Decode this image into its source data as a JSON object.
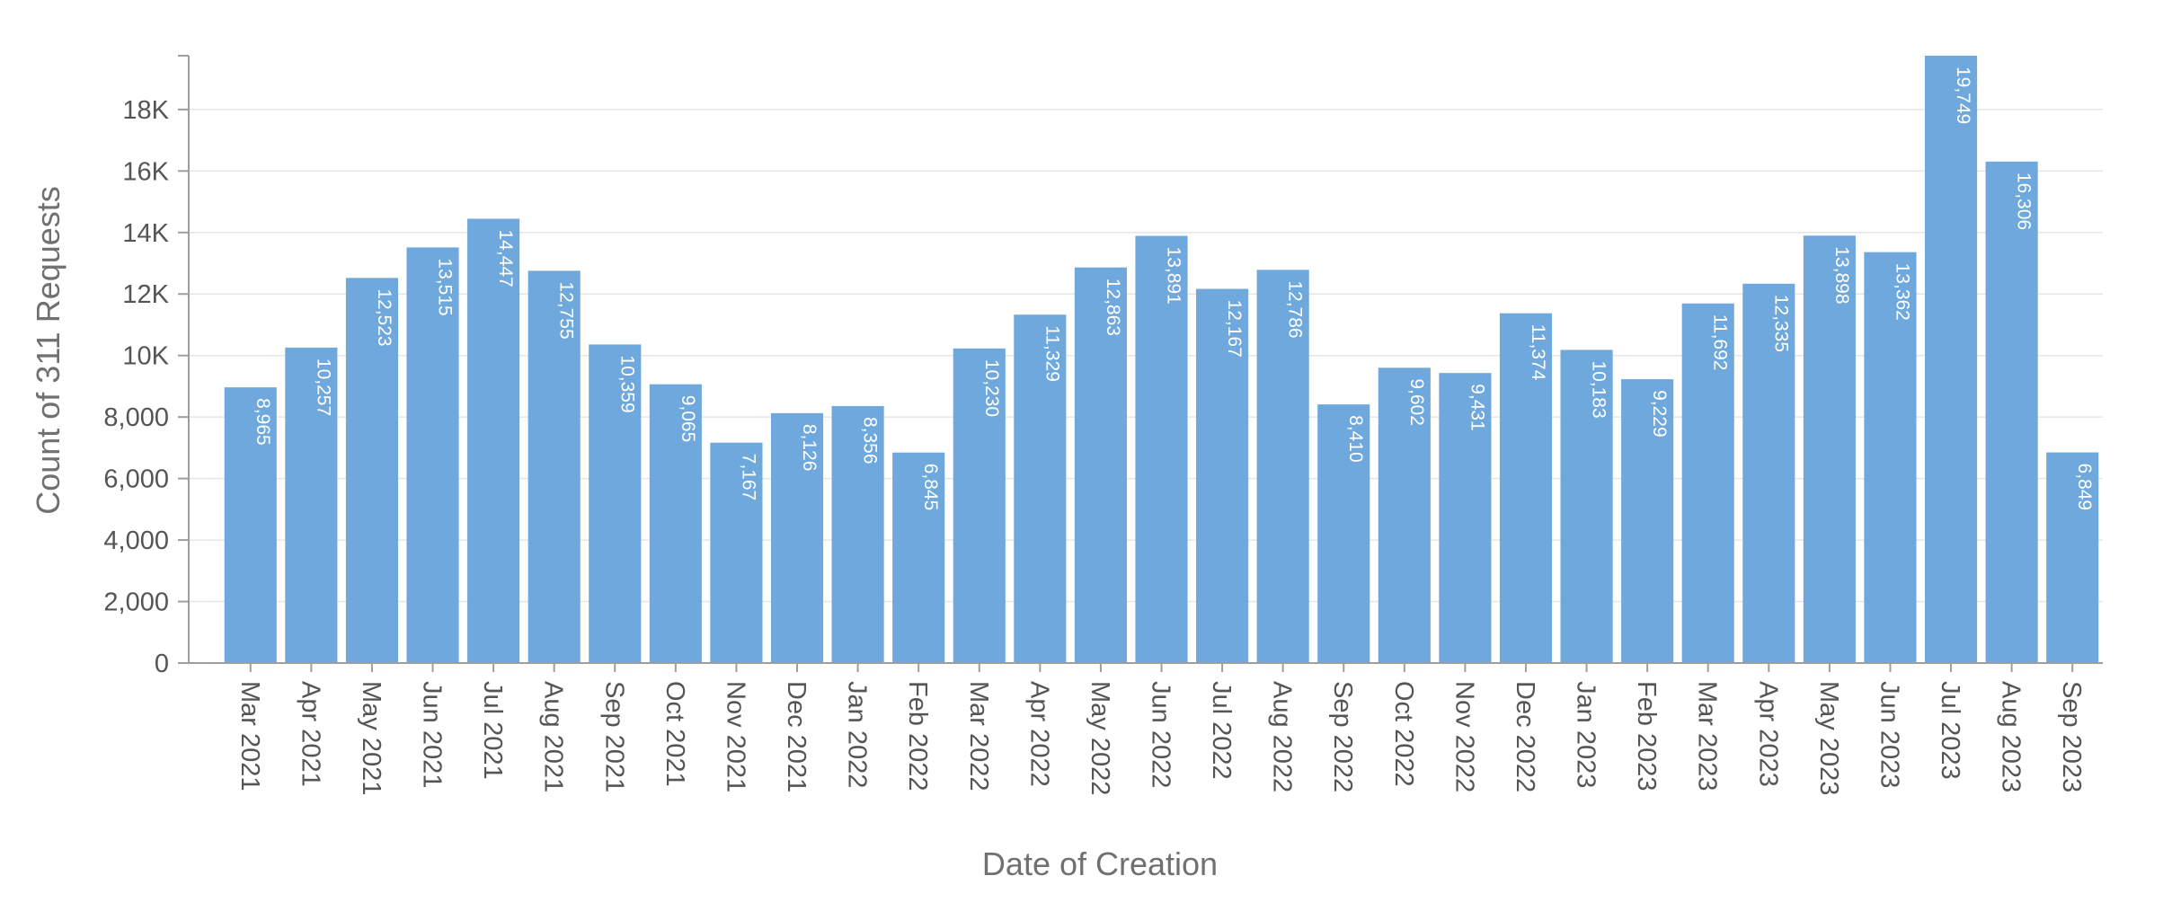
{
  "chart_data": {
    "type": "bar",
    "xlabel": "Date of Creation",
    "ylabel": "Count of 311 Requests",
    "ylim": [
      0,
      19749
    ],
    "grid": true,
    "bar_color": "#6fa8dc",
    "y_ticks": [
      {
        "value": 0,
        "label": "0"
      },
      {
        "value": 2000,
        "label": "2,000"
      },
      {
        "value": 4000,
        "label": "4,000"
      },
      {
        "value": 6000,
        "label": "6,000"
      },
      {
        "value": 8000,
        "label": "8,000"
      },
      {
        "value": 10000,
        "label": "10K"
      },
      {
        "value": 12000,
        "label": "12K"
      },
      {
        "value": 14000,
        "label": "14K"
      },
      {
        "value": 16000,
        "label": "16K"
      },
      {
        "value": 18000,
        "label": "18K"
      }
    ],
    "categories": [
      "Mar 2021",
      "Apr 2021",
      "May 2021",
      "Jun 2021",
      "Jul 2021",
      "Aug 2021",
      "Sep 2021",
      "Oct 2021",
      "Nov 2021",
      "Dec 2021",
      "Jan 2022",
      "Feb 2022",
      "Mar 2022",
      "Apr 2022",
      "May 2022",
      "Jun 2022",
      "Jul 2022",
      "Aug 2022",
      "Sep 2022",
      "Oct 2022",
      "Nov 2022",
      "Dec 2022",
      "Jan 2023",
      "Feb 2023",
      "Mar 2023",
      "Apr 2023",
      "May 2023",
      "Jun 2023",
      "Jul 2023",
      "Aug 2023",
      "Sep 2023"
    ],
    "values": [
      8965,
      10257,
      12523,
      13515,
      14447,
      12755,
      10359,
      9065,
      7167,
      8126,
      8356,
      6845,
      10230,
      11329,
      12863,
      13891,
      12167,
      12786,
      8410,
      9602,
      9431,
      11374,
      10183,
      9229,
      11692,
      12335,
      13898,
      13362,
      19749,
      16306,
      6849
    ],
    "data_labels": [
      "8,965",
      "10,257",
      "12,523",
      "13,515",
      "14,447",
      "12,755",
      "10,359",
      "9,065",
      "7,167",
      "8,126",
      "8,356",
      "6,845",
      "10,230",
      "11,329",
      "12,863",
      "13,891",
      "12,167",
      "12,786",
      "8,410",
      "9,602",
      "9,431",
      "11,374",
      "10,183",
      "9,229",
      "11,692",
      "12,335",
      "13,898",
      "13,362",
      "19,749",
      "16,306",
      "6,849"
    ]
  }
}
